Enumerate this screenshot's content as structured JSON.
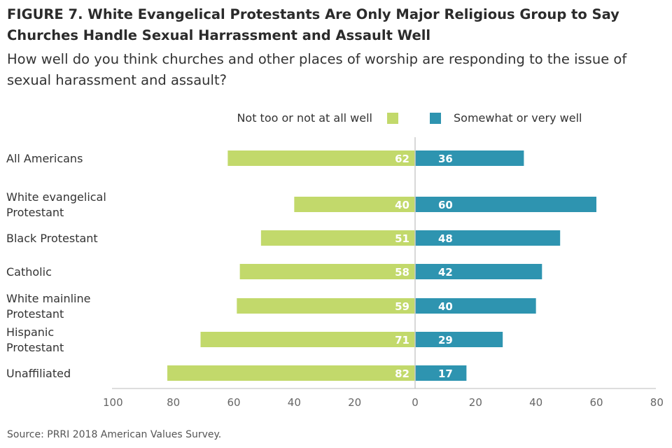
{
  "title": "FIGURE 7. White Evangelical Protestants Are Only Major Religious Group to Say Churches Handle Sexual Harrassment and Assault Well",
  "subtitle": "How well do you think churches and other places of worship are responding to the issue of sexual harassment and assault?",
  "source": "Source: PRRI 2018 American Values Survey.",
  "chart_data": {
    "type": "bar",
    "orientation": "horizontal-diverging",
    "categories": [
      [
        "All Americans"
      ],
      [
        "White evangelical",
        "Protestant"
      ],
      [
        "Black Protestant"
      ],
      [
        "Catholic"
      ],
      [
        "White mainline",
        "Protestant"
      ],
      [
        "Hispanic",
        "Protestant"
      ],
      [
        "Unaffiliated"
      ]
    ],
    "series": [
      {
        "name": "Not too or not at all well",
        "color": "#c2d96b",
        "direction": "left",
        "values": [
          62,
          40,
          51,
          58,
          59,
          71,
          82
        ]
      },
      {
        "name": "Somewhat or very well",
        "color": "#2e94b0",
        "direction": "right",
        "values": [
          36,
          60,
          48,
          42,
          40,
          29,
          17
        ]
      }
    ],
    "xlim": [
      -100,
      80
    ],
    "x_ticks": [
      {
        "value": -100,
        "label": "100"
      },
      {
        "value": -80,
        "label": "80"
      },
      {
        "value": -60,
        "label": "60"
      },
      {
        "value": -40,
        "label": "40"
      },
      {
        "value": -20,
        "label": "20"
      },
      {
        "value": 0,
        "label": "0"
      },
      {
        "value": 20,
        "label": "20"
      },
      {
        "value": 40,
        "label": "40"
      },
      {
        "value": 60,
        "label": "60"
      },
      {
        "value": 80,
        "label": "80"
      }
    ],
    "legend_position": "top-center",
    "grid": false,
    "zero_line_color": "#cccccc",
    "axis_color": "#bbbbbb"
  }
}
